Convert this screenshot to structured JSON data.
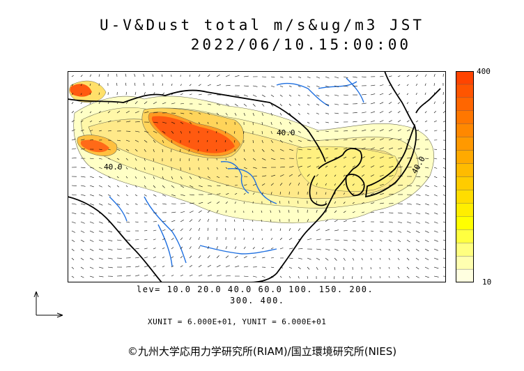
{
  "title": {
    "line1": "U-V&Dust total m/s&ug/m3 JST",
    "line2": "2022/06/10.15:00:00"
  },
  "legend": {
    "max_label": "400",
    "min_label": "10",
    "colors": [
      "#ffffe0",
      "#ffffb0",
      "#ffff80",
      "#ffff40",
      "#ffff00",
      "#ffee00",
      "#ffdd00",
      "#ffcc00",
      "#ffbb00",
      "#ffaa00",
      "#ff9900",
      "#ff8800",
      "#ff7700",
      "#ff6600",
      "#ff5500",
      "#ff4400"
    ]
  },
  "contour_labels": [
    "40.0",
    "40.0",
    "40.0"
  ],
  "levels": {
    "line1": "lev= 10.0 20.0 40.0 60.0 100. 150. 200.",
    "line2": "300. 400."
  },
  "units": "XUNIT = 6.000E+01, YUNIT = 6.000E+01",
  "credit": "©九州大学応用力学研究所(RIAM)/国立環境研究所(NIES)",
  "colors": {
    "coast": "#000000",
    "rivers": "#1e6fe0",
    "high_dust": "#ff5a10",
    "mid_dust": "#ffd84a",
    "low_dust": "#ffffb8"
  }
}
